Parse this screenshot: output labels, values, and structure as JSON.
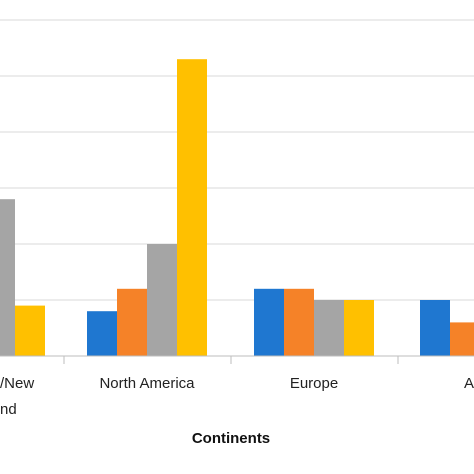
{
  "chart_data": {
    "type": "bar",
    "title": "",
    "xlabel": "Continents",
    "ylabel": "",
    "ylim": [
      0,
      6.5
    ],
    "grid": true,
    "legend": "none",
    "categories": [
      "Australia/New Zealand",
      "North America",
      "Europe",
      "Asia"
    ],
    "visible_category_labels": [
      "/New",
      "nd",
      "North America",
      "Europe",
      "A"
    ],
    "series": [
      {
        "color": "#1F77D0",
        "values": [
          null,
          0.8,
          1.2,
          1.0
        ]
      },
      {
        "color": "#F58228",
        "values": [
          null,
          1.2,
          1.2,
          0.6
        ]
      },
      {
        "color": "#A5A5A5",
        "values": [
          2.8,
          2.0,
          1.0,
          null
        ]
      },
      {
        "color": "#FFC000",
        "values": [
          0.9,
          5.3,
          1.0,
          null
        ]
      }
    ]
  }
}
